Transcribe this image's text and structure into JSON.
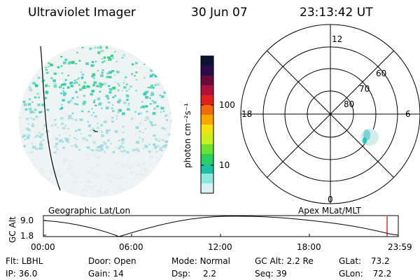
{
  "header": {
    "instrument": "Ultraviolet Imager",
    "date": "30 Jun 07",
    "time": "23:13:42 UT"
  },
  "colorbar": {
    "unit_label": "photon cm⁻²s⁻¹",
    "ticks": [
      "100",
      "10"
    ],
    "colors": [
      "#111133",
      "#2a0a4a",
      "#6a0a3a",
      "#b0103a",
      "#e0201a",
      "#f06a10",
      "#f6a800",
      "#f4e010",
      "#c8f020",
      "#6ee030",
      "#2ad060",
      "#20c0a0",
      "#8fe8e0",
      "#d8f0f0"
    ]
  },
  "polar_grid": {
    "mlt_labels": [
      "12",
      "18",
      "6",
      "0"
    ],
    "lat_labels": [
      "60",
      "70",
      "80"
    ]
  },
  "timeline": {
    "left_title": "Geographic Lat/Lon",
    "right_title": "Apex MLat/MLT",
    "yaxis_label": "GC Alt",
    "y_ticks": [
      "9.0",
      "1.8"
    ],
    "x_ticks": [
      "00:00",
      "06:00",
      "12:00",
      "18:00",
      "23:59"
    ],
    "marker_color": "#cc0000"
  },
  "info": {
    "flt_label": "Flt:",
    "flt_value": "LBHL",
    "ip_label": "IP:",
    "ip_value": "36.0",
    "door_label": "Door:",
    "door_value": "Open",
    "gain_label": "Gain:",
    "gain_value": "14",
    "mode_label": "Mode:",
    "mode_value": "Normal",
    "dsp_label": "Dsp:",
    "dsp_value": "2.2",
    "gcalt_label": "GC Alt:",
    "gcalt_value": "2.2 Re",
    "seq_label": "Seq:",
    "seq_value": "39",
    "glat_label": "GLat:",
    "glat_value": "73.2",
    "glon_label": "GLon:",
    "glon_value": "72.2"
  },
  "image_colors": {
    "dim": "#e2eeee",
    "mid": "#9ad8e0",
    "bright": "#3cc8b8",
    "peak": "#22d080"
  }
}
